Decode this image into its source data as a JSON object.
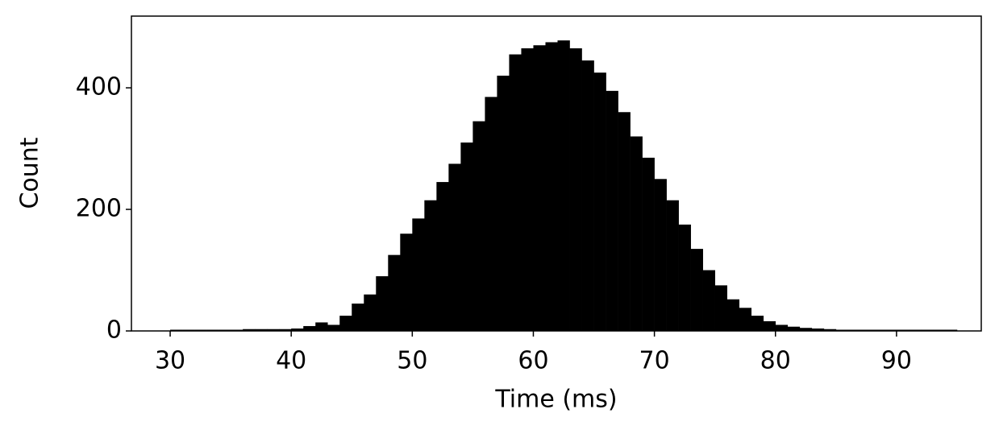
{
  "chart_data": {
    "type": "histogram",
    "xlabel": "Time (ms)",
    "ylabel": "Count",
    "bins": [
      30,
      31,
      32,
      33,
      34,
      35,
      36,
      37,
      38,
      39,
      40,
      41,
      42,
      43,
      44,
      45,
      46,
      47,
      48,
      49,
      50,
      51,
      52,
      53,
      54,
      55,
      56,
      57,
      58,
      59,
      60,
      61,
      62,
      63,
      64,
      65,
      66,
      67,
      68,
      69,
      70,
      71,
      72,
      73,
      74,
      75,
      76,
      77,
      78,
      79,
      80,
      81,
      82,
      83,
      84,
      85,
      86,
      87,
      88,
      89,
      90,
      91,
      92,
      93,
      94,
      95
    ],
    "counts": [
      2,
      2,
      2,
      2,
      2,
      2,
      3,
      3,
      3,
      3,
      4,
      8,
      14,
      10,
      25,
      45,
      60,
      90,
      125,
      160,
      185,
      215,
      245,
      275,
      310,
      345,
      385,
      420,
      455,
      465,
      470,
      475,
      478,
      465,
      445,
      425,
      395,
      360,
      320,
      285,
      250,
      215,
      175,
      135,
      100,
      75,
      52,
      38,
      25,
      16,
      10,
      7,
      5,
      4,
      3,
      2,
      2,
      2,
      2,
      2,
      2,
      2,
      2,
      2,
      2
    ],
    "color": "#000000",
    "xlim": [
      26.8,
      97.0
    ],
    "ylim": [
      0,
      518
    ],
    "xticks": [
      30,
      40,
      50,
      60,
      70,
      80,
      90
    ],
    "yticks": [
      0,
      200,
      400
    ]
  }
}
